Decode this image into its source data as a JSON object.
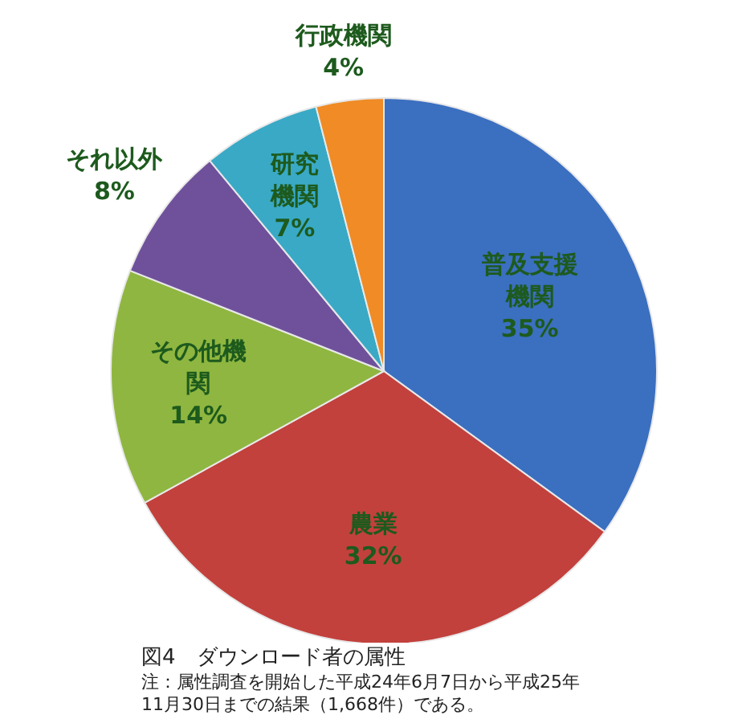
{
  "chart_data": {
    "type": "pie",
    "title": "図4　ダウンロード者の属性",
    "categories": [
      "普及支援機関",
      "農業",
      "その他機関",
      "それ以外",
      "研究機関",
      "行政機関"
    ],
    "values": [
      35,
      32,
      14,
      8,
      7,
      4
    ],
    "colors": [
      "#3b6fc0",
      "#c2413d",
      "#8fb640",
      "#6f519b",
      "#39a9c6",
      "#f08b25"
    ],
    "value_labels": [
      "35%",
      "32%",
      "14%",
      "8%",
      "7%",
      "4%"
    ],
    "annotations": [
      "注：属性調査を開始した平成24年6月7日から平成25年",
      "11月30日までの結果（1,668件）である。"
    ]
  }
}
